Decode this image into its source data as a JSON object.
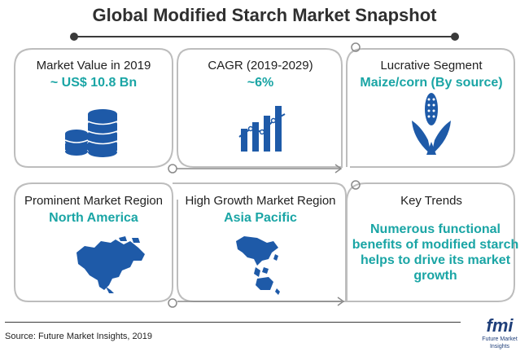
{
  "title": "Global Modified Starch Market Snapshot",
  "colors": {
    "accent": "#1aa5a5",
    "icon": "#1e5aa8",
    "frame": "#bdbdbd"
  },
  "cards": [
    {
      "label": "Market Value in 2019",
      "value": "~ US$ 10.8 Bn",
      "icon": "coins-stack-icon"
    },
    {
      "label": "CAGR (2019-2029)",
      "value": "~6%",
      "icon": "bar-chart-growth-icon"
    },
    {
      "label": "Lucrative Segment",
      "value": "Maize/corn (By source)",
      "icon": "corn-icon"
    },
    {
      "label": "Prominent Market Region",
      "value": "North America",
      "icon": "north-america-map-icon"
    },
    {
      "label": "High Growth Market Region",
      "value": "Asia Pacific",
      "icon": "asia-pacific-map-icon"
    },
    {
      "label": "Key Trends",
      "value": "Numerous functional benefits of modified starch helps to drive its market growth",
      "icon": ""
    }
  ],
  "source": "Source: Future Market Insights, 2019",
  "logo": {
    "word": "fmi",
    "sub": "Future Market Insights"
  }
}
